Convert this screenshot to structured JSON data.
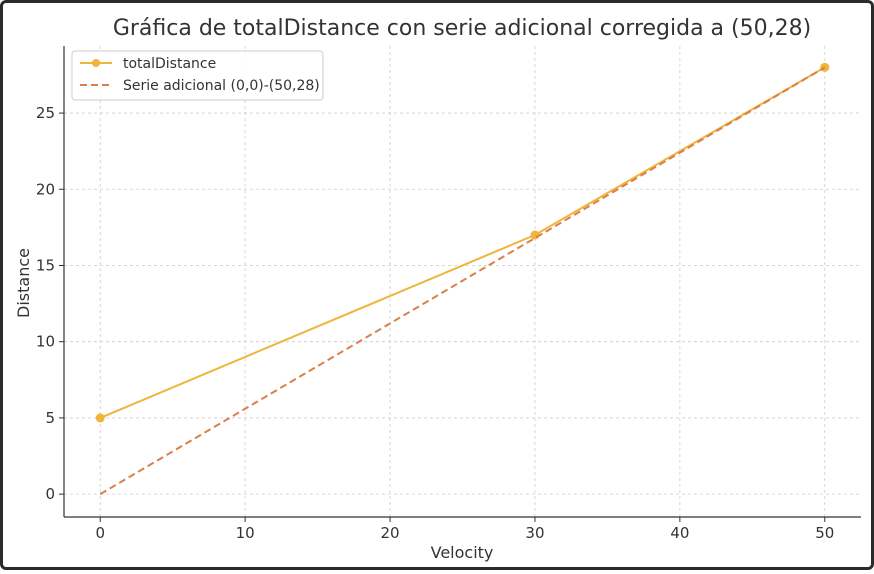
{
  "chart_data": {
    "type": "line",
    "title": "Gráfica de totalDistance con serie adicional corregida a (50,28)",
    "xlabel": "Velocity",
    "ylabel": "Distance",
    "xlim": [
      -2.5,
      52.5
    ],
    "ylim": [
      -1.5,
      29.4
    ],
    "x_ticks": [
      0,
      10,
      20,
      30,
      40,
      50
    ],
    "y_ticks": [
      0,
      5,
      10,
      15,
      20,
      25
    ],
    "grid": true,
    "legend_position": "top-left",
    "series": [
      {
        "name": "totalDistance",
        "style": "solid-with-markers",
        "color": "#f0b43a",
        "points": [
          [
            0,
            5
          ],
          [
            30,
            17
          ],
          [
            50,
            28
          ]
        ]
      },
      {
        "name": "Serie adicional (0,0)-(50,28)",
        "style": "dashed",
        "color": "#d9804a",
        "points": [
          [
            0,
            0
          ],
          [
            50,
            28
          ]
        ]
      }
    ]
  }
}
